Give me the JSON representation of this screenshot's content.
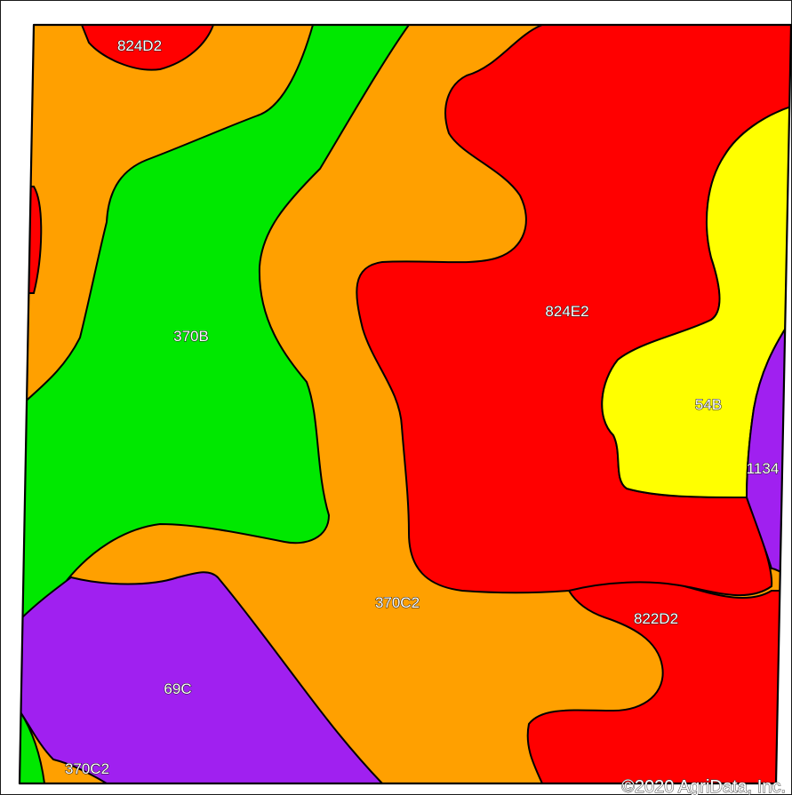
{
  "map": {
    "colors": {
      "orange": "#FFA000",
      "red": "#FF0000",
      "green": "#00E800",
      "yellow": "#FFFF00",
      "purple": "#A020F0"
    },
    "labels": {
      "unit_824D2": "824D2",
      "unit_370B": "370B",
      "unit_824E2": "824E2",
      "unit_54B": "54B",
      "unit_1134": "1134",
      "unit_370C2_center": "370C2",
      "unit_822D2": "822D2",
      "unit_69C": "69C",
      "unit_370C2_corner": "370C2"
    },
    "copyright": "©2020 AgriData, Inc."
  }
}
